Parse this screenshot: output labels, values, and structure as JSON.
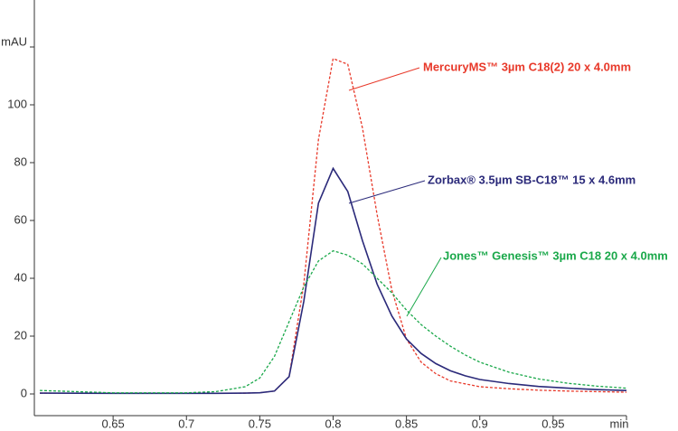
{
  "chart_data": {
    "type": "line",
    "x": [
      0.6,
      0.65,
      0.7,
      0.72,
      0.74,
      0.75,
      0.76,
      0.77,
      0.78,
      0.79,
      0.8,
      0.81,
      0.82,
      0.83,
      0.84,
      0.85,
      0.86,
      0.87,
      0.88,
      0.89,
      0.9,
      0.92,
      0.94,
      0.96,
      0.98,
      1.0
    ],
    "series": [
      {
        "name": "MercuryMS™ 3µm C18(2) 20 x 4.0mm",
        "color": "#e8392a",
        "dashed": true,
        "values": [
          0.3,
          0.2,
          0.2,
          0.2,
          0.3,
          0.4,
          1,
          6,
          38,
          88,
          116,
          114,
          92,
          62,
          36,
          19,
          11,
          7,
          4.5,
          3.5,
          2.5,
          1.8,
          1.3,
          1,
          0.8,
          0.6
        ]
      },
      {
        "name": "Zorbax® 3.5µm SB-C18™ 15 x 4.6mm",
        "color": "#2b2a7a",
        "dashed": false,
        "values": [
          0.3,
          0.2,
          0.2,
          0.2,
          0.3,
          0.4,
          1,
          6,
          32,
          66,
          78,
          70,
          53,
          38,
          27,
          19,
          14,
          10.5,
          8,
          6.3,
          5,
          3.6,
          2.6,
          2,
          1.5,
          1.2
        ]
      },
      {
        "name": "Jones™ Genesis™ 3µm C18 20 x 4.0mm",
        "color": "#1aa84a",
        "dashed": true,
        "values": [
          1.2,
          0.4,
          0.4,
          0.8,
          2.5,
          5.5,
          13,
          25,
          37,
          46,
          49.5,
          48,
          45,
          40,
          35,
          29,
          24,
          20,
          16.5,
          13.5,
          11,
          7.5,
          5.2,
          3.7,
          2.7,
          2
        ]
      }
    ],
    "xlim": [
      0.6,
      1.0
    ],
    "xticks": [
      0.65,
      0.7,
      0.75,
      0.8,
      0.85,
      0.9,
      0.95,
      {
        "value": 1.0,
        "label": "min"
      }
    ],
    "ylim": [
      -7.5,
      136
    ],
    "yticks": [
      0,
      20,
      40,
      60,
      80,
      100,
      {
        "value": 120,
        "label": "mAU"
      }
    ]
  }
}
